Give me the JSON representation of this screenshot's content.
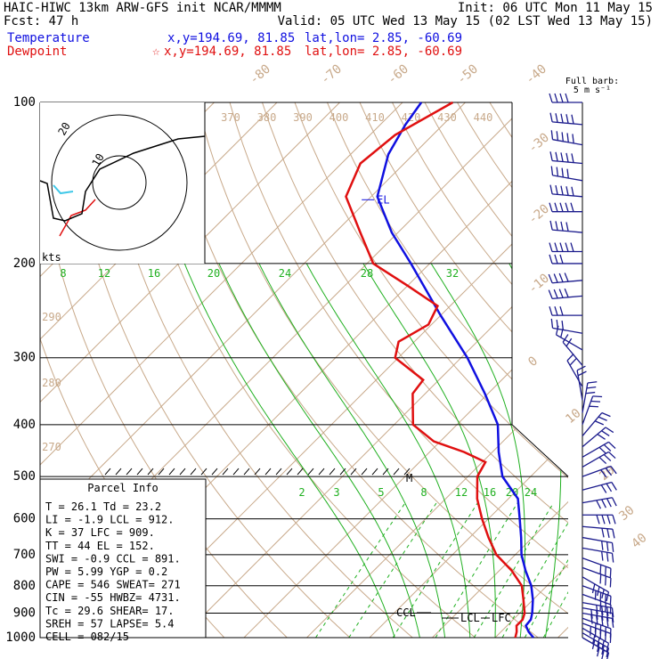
{
  "header": {
    "title_left": "HAIC-HIWC 13km ARW-GFS init   NCAR/MMMM",
    "init": "Init: 06 UTC Mon 11 May 15",
    "fcst": "Fcst:   47 h",
    "valid": "Valid: 05 UTC Wed 13 May 15 (02 LST Wed 13 May 15)",
    "temp_label": "Temperature",
    "temp_xy": "x,y=194.69, 81.85",
    "temp_latlon": "lat,lon=  2.85, -60.69",
    "dew_label": "Dewpoint",
    "dew_xy": "x,y=194.69, 81.85",
    "dew_latlon": "lat,lon=  2.85, -60.69",
    "dew_marker": "☆",
    "barb_legend_1": "Full barb:",
    "barb_legend_2": "5 m s⁻¹"
  },
  "colors": {
    "temperature": "#1010e0",
    "dewpoint": "#e01010",
    "isotherm": "#c8a98a",
    "mixing_ratio": "#20b020",
    "moist_adiabat": "#20b020",
    "barb": "#1a1a8c"
  },
  "chart_data": {
    "type": "line",
    "pressure_levels": [
      "100",
      "200",
      "300",
      "400",
      "500",
      "600",
      "700",
      "800",
      "900",
      "1000"
    ],
    "x_label": "",
    "y_label": "",
    "isotherm_labels": [
      "-80",
      "-70",
      "-60",
      "-50",
      "-40",
      "-30",
      "-20",
      "-10",
      "0",
      "10",
      "20",
      "30",
      "40"
    ],
    "theta_labels": [
      "370",
      "380",
      "390",
      "400",
      "410",
      "420",
      "430",
      "440"
    ],
    "theta_side_labels": [
      "290",
      "280",
      "270"
    ],
    "mixing_top_labels": [
      "8",
      "12",
      "16",
      "20",
      "24",
      "28",
      "32"
    ],
    "mixing_bottom_labels": [
      "2",
      "3",
      "5",
      "8",
      "12",
      "16",
      "20",
      "24"
    ],
    "series": [
      {
        "name": "Temperature",
        "values": [
          [
            1000,
            26.1
          ],
          [
            975,
            24.4
          ],
          [
            950,
            23
          ],
          [
            925,
            22.8
          ],
          [
            900,
            22
          ],
          [
            850,
            20
          ],
          [
            800,
            17.5
          ],
          [
            750,
            14.2
          ],
          [
            700,
            11
          ],
          [
            650,
            8.2
          ],
          [
            600,
            5
          ],
          [
            550,
            1.5
          ],
          [
            500,
            -4.5
          ],
          [
            450,
            -9
          ],
          [
            400,
            -13.5
          ],
          [
            350,
            -20.5
          ],
          [
            300,
            -29
          ],
          [
            250,
            -40
          ],
          [
            200,
            -53
          ],
          [
            175,
            -61
          ],
          [
            150,
            -69
          ],
          [
            125,
            -74
          ],
          [
            110,
            -76
          ],
          [
            100,
            -77
          ]
        ]
      },
      {
        "name": "Dewpoint",
        "values": [
          [
            1000,
            23.2
          ],
          [
            975,
            22.5
          ],
          [
            950,
            21.5
          ],
          [
            925,
            21.5
          ],
          [
            900,
            20.8
          ],
          [
            850,
            18.5
          ],
          [
            800,
            16
          ],
          [
            750,
            12
          ],
          [
            700,
            7
          ],
          [
            650,
            3
          ],
          [
            600,
            -1
          ],
          [
            550,
            -5
          ],
          [
            500,
            -8.5
          ],
          [
            470,
            -9.5
          ],
          [
            450,
            -14.5
          ],
          [
            430,
            -21
          ],
          [
            400,
            -27
          ],
          [
            350,
            -32
          ],
          [
            330,
            -32.5
          ],
          [
            300,
            -40.5
          ],
          [
            280,
            -42.5
          ],
          [
            260,
            -40.5
          ],
          [
            240,
            -42
          ],
          [
            220,
            -50
          ],
          [
            200,
            -59
          ],
          [
            175,
            -66
          ],
          [
            150,
            -74
          ],
          [
            130,
            -77
          ],
          [
            115,
            -76
          ],
          [
            100,
            -72
          ]
        ]
      }
    ],
    "level_annotations": [
      "EL",
      "M",
      "CCL",
      "LCL",
      "LFC"
    ]
  },
  "hodograph": {
    "ring_labels": [
      "20",
      "10"
    ],
    "units": "kts"
  },
  "parcel": {
    "title": "Parcel Info",
    "rows": [
      "T   =   26.1  Td =  23.2",
      "LI  =   -1.9  LCL =  912.",
      "K   =     37  LFC =  909.",
      "TT  =     44  EL  =  152.",
      "SWI =   -0.9  CCL =  891.",
      "PW  =   5.99  YGP =   0.2",
      "CAPE =   546  SWEAT=  271",
      "CIN  =   -55  HWBZ= 4731.",
      "Tc   =  29.6  SHEAR=  17.",
      "SREH =    57  LAPSE=   5.4",
      "CELL =  082/15"
    ]
  },
  "wind_profile": [
    [
      100,
      270,
      20
    ],
    [
      110,
      275,
      25
    ],
    [
      120,
      280,
      25
    ],
    [
      130,
      275,
      25
    ],
    [
      140,
      280,
      20
    ],
    [
      150,
      275,
      25
    ],
    [
      160,
      270,
      25
    ],
    [
      175,
      275,
      20
    ],
    [
      190,
      270,
      25
    ],
    [
      200,
      270,
      15
    ],
    [
      215,
      265,
      20
    ],
    [
      230,
      265,
      20
    ],
    [
      250,
      270,
      15
    ],
    [
      270,
      280,
      15
    ],
    [
      290,
      300,
      10
    ],
    [
      310,
      320,
      10
    ],
    [
      340,
      330,
      10
    ],
    [
      360,
      350,
      10
    ],
    [
      380,
      10,
      15
    ],
    [
      400,
      20,
      15
    ],
    [
      420,
      40,
      15
    ],
    [
      440,
      50,
      15
    ],
    [
      460,
      60,
      15
    ],
    [
      480,
      60,
      15
    ],
    [
      500,
      70,
      15
    ],
    [
      530,
      75,
      15
    ],
    [
      560,
      80,
      20
    ],
    [
      590,
      90,
      20
    ],
    [
      620,
      95,
      15
    ],
    [
      650,
      100,
      15
    ],
    [
      680,
      100,
      15
    ],
    [
      710,
      110,
      15
    ],
    [
      740,
      110,
      15
    ],
    [
      770,
      120,
      20
    ],
    [
      800,
      110,
      20
    ],
    [
      830,
      110,
      15
    ],
    [
      860,
      100,
      20
    ],
    [
      880,
      100,
      25
    ],
    [
      900,
      100,
      25
    ],
    [
      920,
      110,
      20
    ],
    [
      940,
      110,
      25
    ],
    [
      960,
      120,
      20
    ],
    [
      980,
      120,
      20
    ],
    [
      1000,
      120,
      15
    ]
  ]
}
